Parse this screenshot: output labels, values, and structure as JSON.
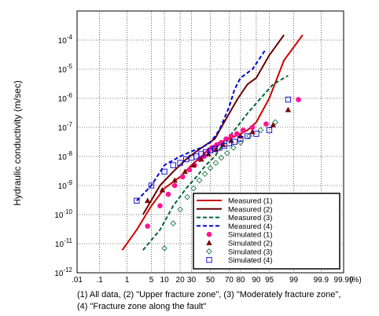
{
  "chart_data": {
    "type": "line",
    "xscale": "normal-probability",
    "yscale": "log",
    "xlabel": "",
    "x_unit_label": "(%)",
    "ylabel": "Hydraulic conductivity (m/sec)",
    "xlim": [
      0.01,
      99.99
    ],
    "ylim": [
      1e-12,
      0.001
    ],
    "x_ticks": [
      0.01,
      0.1,
      1,
      5,
      10,
      20,
      30,
      50,
      70,
      80,
      90,
      95,
      99,
      99.9,
      99.99
    ],
    "x_tick_labels": [
      ".01",
      ".1",
      "1",
      "5",
      "10",
      "20",
      "30",
      "50",
      "70",
      "80",
      "90",
      "95",
      "99",
      "99.9",
      "99.99"
    ],
    "y_ticks": [
      1e-12,
      1e-11,
      1e-10,
      1e-09,
      1e-08,
      1e-07,
      1e-06,
      1e-05,
      0.0001
    ],
    "y_tick_bases": [
      "10",
      "10",
      "10",
      "10",
      "10",
      "10",
      "10",
      "10",
      "10"
    ],
    "y_tick_exps": [
      "-12",
      "-11",
      "-10",
      "-9",
      "-8",
      "-7",
      "-6",
      "-5",
      "-4"
    ],
    "grid": true,
    "legend_position": "bottom-right",
    "series": [
      {
        "name": "Measured (1)",
        "kind": "line",
        "style": "solid",
        "color": "#cc0000",
        "x": [
          0.7,
          2,
          5,
          10,
          20,
          30,
          40,
          50,
          60,
          70,
          80,
          85,
          90,
          95,
          98,
          99.5
        ],
        "y": [
          6e-12,
          3e-11,
          2e-10,
          8e-10,
          2e-09,
          5e-09,
          1e-08,
          2e-08,
          3e-08,
          4e-08,
          6e-08,
          8e-08,
          1.5e-07,
          1e-06,
          2e-05,
          0.00015
        ]
      },
      {
        "name": "Measured (2)",
        "kind": "line",
        "style": "solid",
        "color": "#660000",
        "x": [
          3,
          8,
          15,
          25,
          35,
          45,
          55,
          65,
          72,
          78,
          85,
          90,
          95,
          98
        ],
        "y": [
          1e-10,
          1e-09,
          3e-09,
          8e-09,
          1.5e-08,
          2.5e-08,
          4e-08,
          1.5e-07,
          4e-07,
          1e-06,
          3e-06,
          5e-06,
          3e-05,
          0.00015
        ]
      },
      {
        "name": "Measured (3)",
        "kind": "line",
        "style": "dash",
        "color": "#006633",
        "x": [
          3,
          8,
          15,
          25,
          35,
          45,
          55,
          65,
          75,
          85,
          92,
          96,
          98.5
        ],
        "y": [
          6e-12,
          3e-11,
          2e-10,
          8e-10,
          2e-09,
          5e-09,
          1e-08,
          3e-08,
          8e-08,
          3e-07,
          1e-06,
          3e-06,
          6e-06
        ]
      },
      {
        "name": "Measured (4)",
        "kind": "line",
        "style": "dash",
        "color": "#0000cc",
        "x": [
          2,
          5,
          10,
          20,
          30,
          40,
          50,
          60,
          70,
          75,
          80,
          88,
          94
        ],
        "y": [
          3e-10,
          1e-09,
          5e-09,
          1e-08,
          1.5e-08,
          2e-08,
          3e-08,
          8e-08,
          5e-07,
          2e-06,
          5e-06,
          1e-05,
          5e-05
        ]
      },
      {
        "name": "Simulated (1)",
        "kind": "points",
        "marker": "circle",
        "color": "#ff1493",
        "x": [
          4,
          8,
          12,
          16,
          22,
          28,
          33,
          38,
          43,
          48,
          52,
          57,
          62,
          67,
          72,
          77,
          82,
          88,
          94,
          99.3
        ],
        "y": [
          4e-11,
          2e-10,
          5e-10,
          1e-09,
          2e-09,
          3.5e-09,
          5e-09,
          8e-09,
          1e-08,
          1.5e-08,
          2e-08,
          2.5e-08,
          3e-08,
          4e-08,
          5e-08,
          6e-08,
          8e-08,
          1e-07,
          1.3e-07,
          9e-07
        ]
      },
      {
        "name": "Simulated (2)",
        "kind": "points",
        "marker": "triangle",
        "color": "#7a0000",
        "x": [
          4,
          9,
          16,
          24,
          32,
          40,
          48,
          56,
          64,
          72,
          80,
          88,
          96,
          98.5
        ],
        "y": [
          3e-10,
          7e-10,
          1.5e-09,
          3e-09,
          5e-09,
          8e-09,
          1.2e-08,
          1.7e-08,
          2.5e-08,
          3.5e-08,
          5e-08,
          7e-08,
          1.2e-07,
          4e-07
        ]
      },
      {
        "name": "Simulated (3)",
        "kind": "points",
        "marker": "diamond",
        "color": "#006633",
        "x": [
          10,
          15,
          20,
          26,
          32,
          38,
          44,
          50,
          56,
          62,
          68,
          74,
          80,
          86,
          92,
          96.5
        ],
        "y": [
          7e-12,
          5e-11,
          1.5e-10,
          4e-10,
          8e-10,
          1.5e-09,
          2.5e-09,
          4e-09,
          6e-09,
          9e-09,
          1.3e-08,
          2e-08,
          3e-08,
          5e-08,
          8e-08,
          1.5e-07
        ]
      },
      {
        "name": "Simulated (4)",
        "kind": "points",
        "marker": "square",
        "color": "#0000cc",
        "x": [
          2,
          5,
          10,
          15,
          20,
          25,
          30,
          35,
          40,
          45,
          50,
          55,
          60,
          65,
          70,
          75,
          80,
          85,
          90,
          95,
          98.5
        ],
        "y": [
          3e-10,
          1e-09,
          3e-09,
          5e-09,
          6e-09,
          8e-09,
          9e-09,
          1e-08,
          1.2e-08,
          1.4e-08,
          1.6e-08,
          1.8e-08,
          2e-08,
          2.3e-08,
          2.8e-08,
          3.2e-08,
          4e-08,
          5e-08,
          6e-08,
          8e-08,
          9e-07
        ]
      }
    ]
  },
  "caption": {
    "line1": "(1) All data, (2) \"Upper fracture zone\", (3) \"Moderately fracture zone\",",
    "line2": "(4) \"Fracture zone along the fault\""
  }
}
